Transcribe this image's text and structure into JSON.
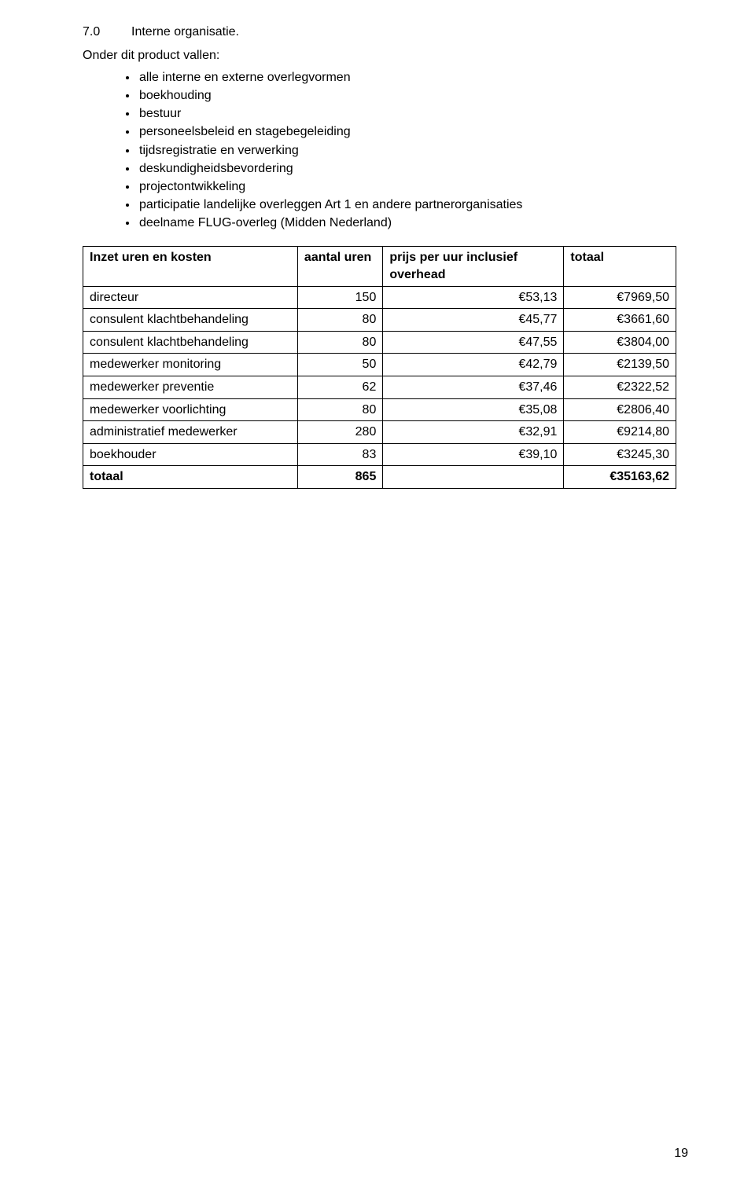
{
  "section": {
    "number": "7.0",
    "title": "Interne organisatie."
  },
  "intro": "Onder dit product vallen:",
  "bullets": [
    "alle interne en externe overlegvormen",
    "boekhouding",
    "bestuur",
    "personeelsbeleid en stagebegeleiding",
    "tijdsregistratie en verwerking",
    "deskundigheidsbevordering",
    "projectontwikkeling",
    "participatie landelijke overleggen Art 1 en andere partnerorganisaties",
    "deelname FLUG-overleg (Midden Nederland)"
  ],
  "table": {
    "columns": [
      "Inzet uren en kosten",
      "aantal uren",
      "prijs per uur inclusief overhead",
      "totaal"
    ],
    "rows": [
      {
        "role": "directeur",
        "hours": "150",
        "price": "€53,13",
        "total": "€7969,50"
      },
      {
        "role": "consulent klachtbehandeling",
        "hours": "80",
        "price": "€45,77",
        "total": "€3661,60"
      },
      {
        "role": "consulent klachtbehandeling",
        "hours": "80",
        "price": "€47,55",
        "total": "€3804,00"
      },
      {
        "role": "medewerker monitoring",
        "hours": "50",
        "price": "€42,79",
        "total": "€2139,50"
      },
      {
        "role": "medewerker preventie",
        "hours": "62",
        "price": "€37,46",
        "total": "€2322,52"
      },
      {
        "role": "medewerker voorlichting",
        "hours": "80",
        "price": "€35,08",
        "total": "€2806,40"
      },
      {
        "role": "administratief medewerker",
        "hours": "280",
        "price": "€32,91",
        "total": "€9214,80"
      },
      {
        "role": "boekhouder",
        "hours": "83",
        "price": "€39,10",
        "total": "€3245,30"
      }
    ],
    "footer": {
      "role": "totaal",
      "hours": "865",
      "price": "",
      "total": "€35163,62"
    }
  },
  "pageNumber": "19"
}
